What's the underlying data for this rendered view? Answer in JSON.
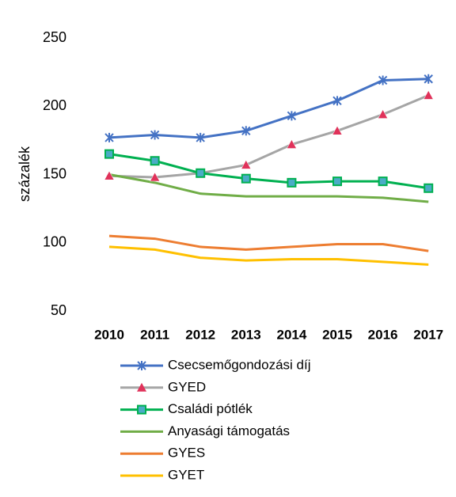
{
  "chart_data": {
    "type": "line",
    "ylabel": "százalék",
    "categories": [
      "2010",
      "2011",
      "2012",
      "2013",
      "2014",
      "2015",
      "2016",
      "2017"
    ],
    "ylim": [
      50,
      250
    ],
    "yticks": [
      50,
      100,
      150,
      200,
      250
    ],
    "grid": false,
    "legend": "bottom",
    "series": [
      {
        "name": "Csecsemőgondozási díj",
        "color": "#4472c4",
        "marker": "asterisk",
        "marker_color": "#4472c4",
        "values": [
          177,
          179,
          177,
          182,
          193,
          204,
          219,
          220
        ]
      },
      {
        "name": "GYED",
        "color": "#a5a5a5",
        "marker": "triangle",
        "marker_color": "#e0325a",
        "values": [
          149,
          148,
          151,
          157,
          172,
          182,
          194,
          208
        ]
      },
      {
        "name": "Családi pótlék",
        "color": "#00b050",
        "marker": "square",
        "marker_color": "#4bacc6",
        "values": [
          165,
          160,
          151,
          147,
          144,
          145,
          145,
          140
        ]
      },
      {
        "name": "Anyasági támogatás",
        "color": "#70ad47",
        "values": [
          150,
          144,
          136,
          134,
          134,
          134,
          133,
          130
        ]
      },
      {
        "name": "GYES",
        "color": "#ed7d31",
        "values": [
          105,
          103,
          97,
          95,
          97,
          99,
          99,
          94
        ]
      },
      {
        "name": "GYET",
        "color": "#ffc000",
        "values": [
          97,
          95,
          89,
          87,
          88,
          88,
          86,
          84
        ]
      }
    ]
  }
}
